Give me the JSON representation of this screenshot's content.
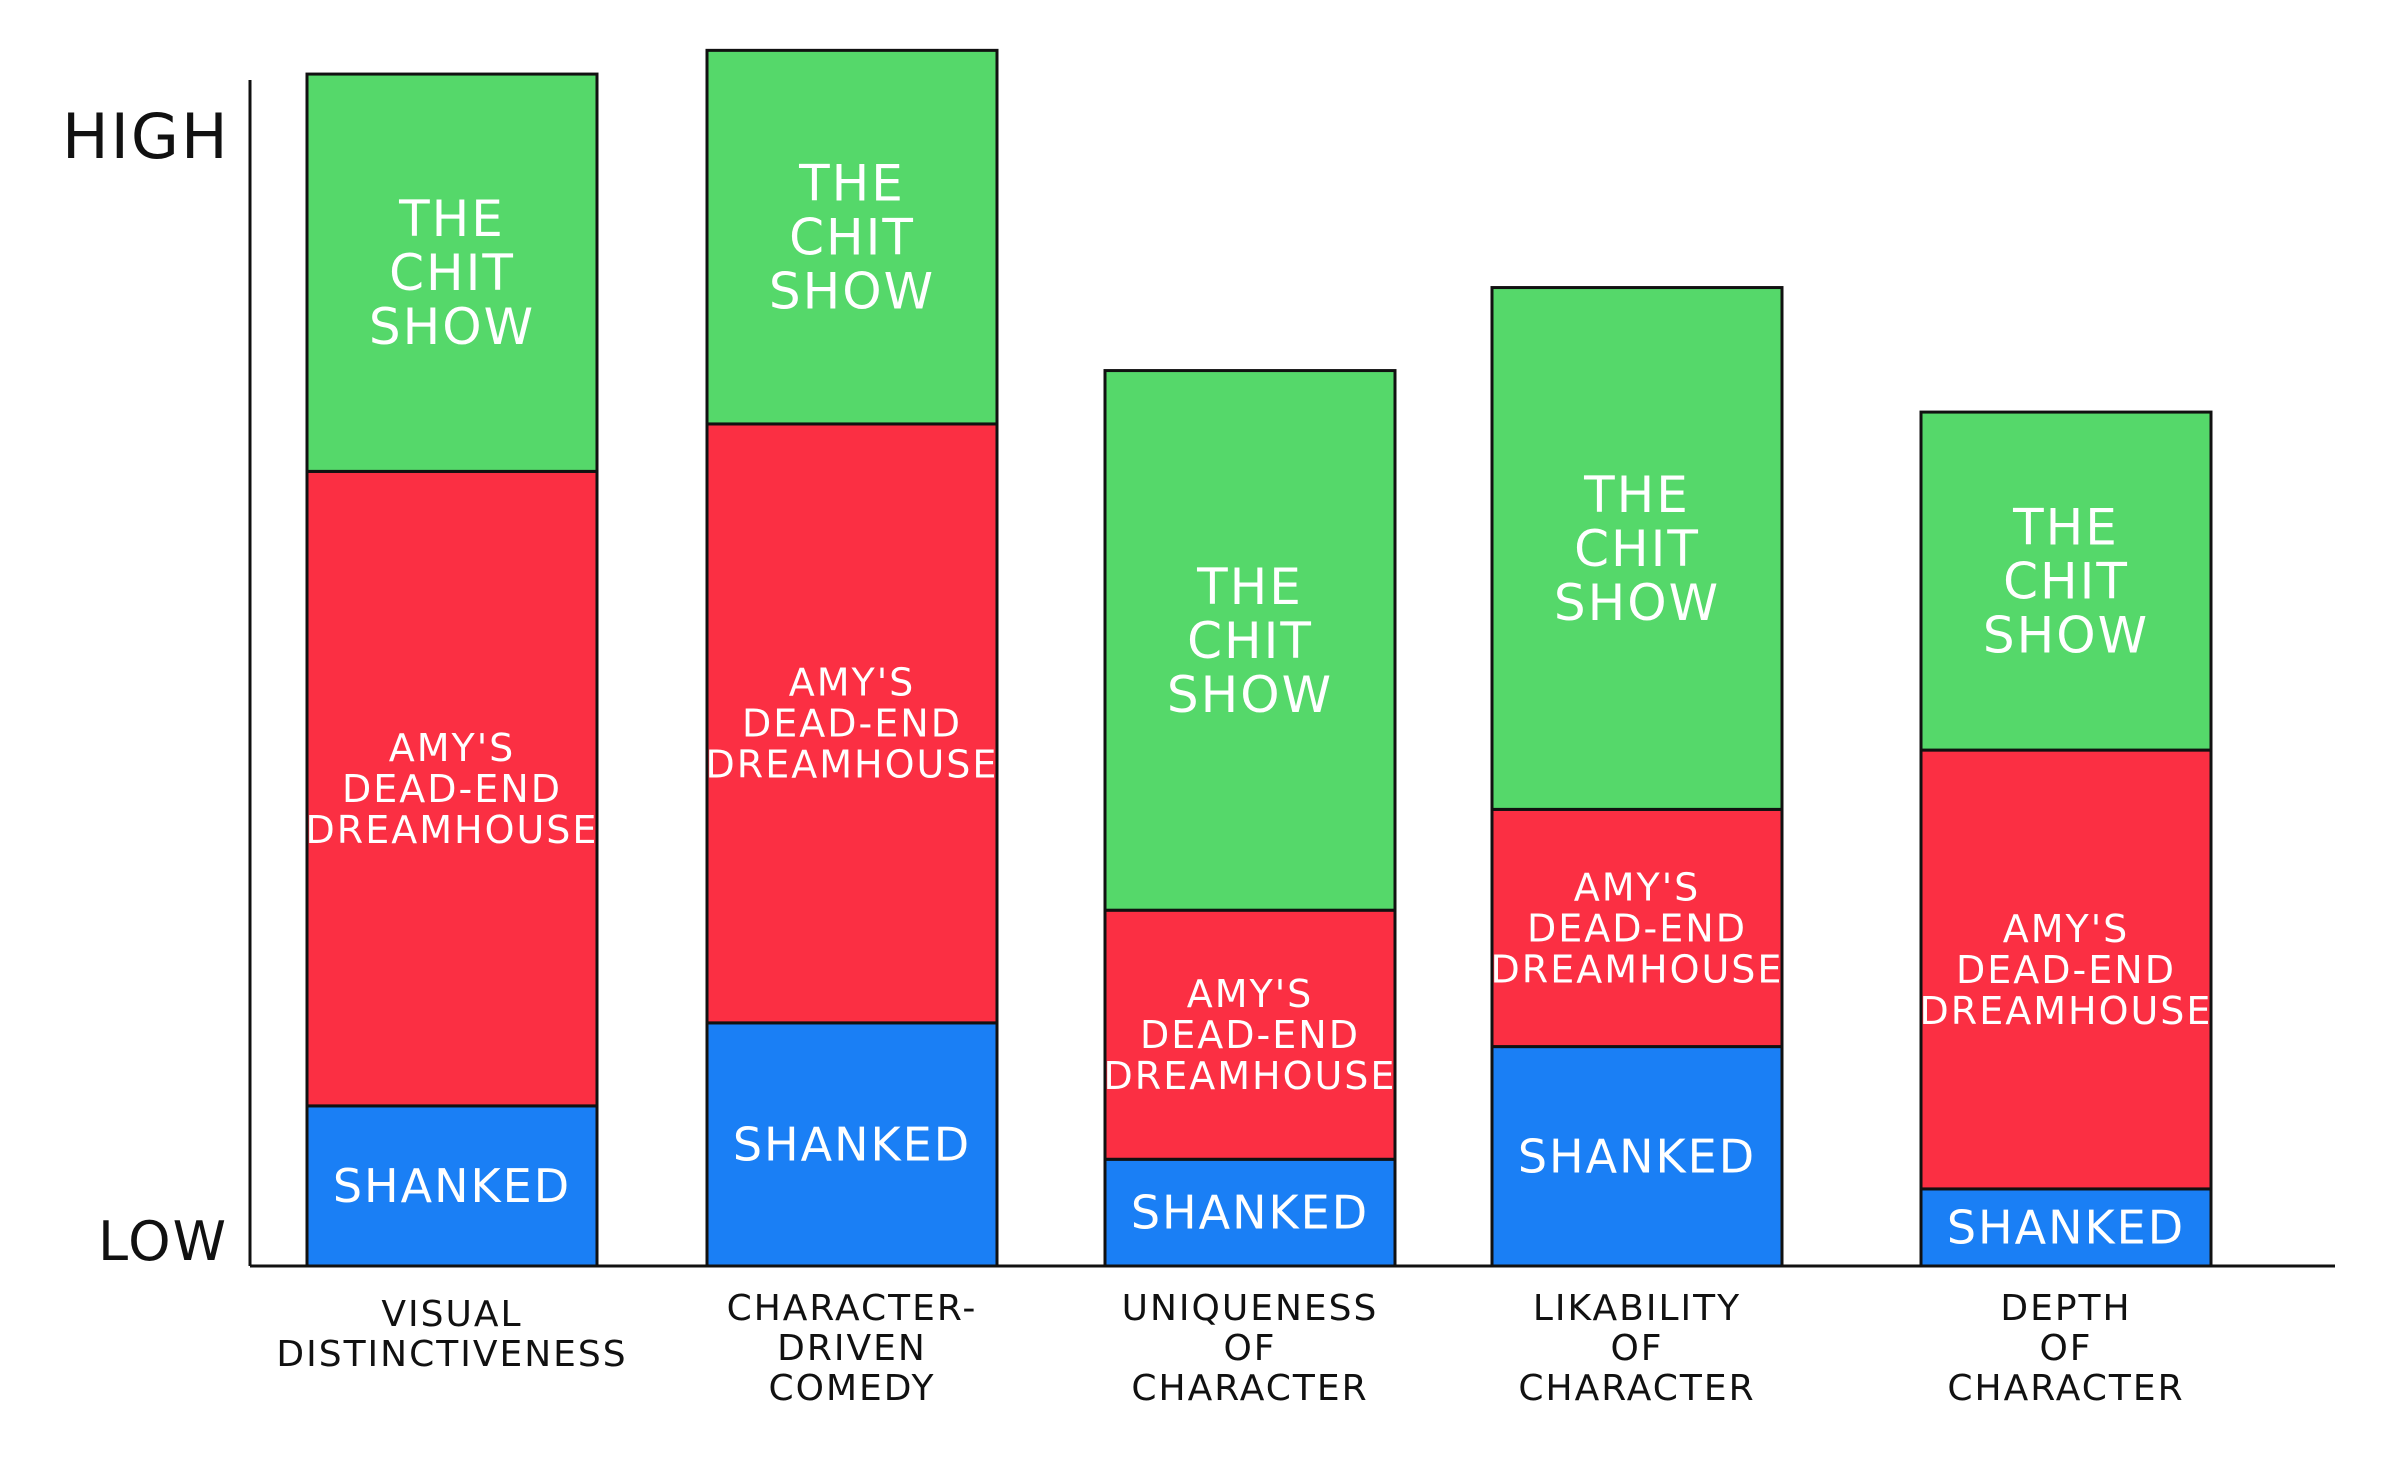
{
  "chart_data": {
    "type": "bar",
    "stacked": true,
    "title": "",
    "xlabel": "",
    "ylabel": "",
    "y_axis_top_label": "HIGH",
    "y_axis_bottom_label": "LOW",
    "ylim": [
      0,
      100
    ],
    "grid": false,
    "legend": "none",
    "categories": [
      [
        "VISUAL",
        "DISTINCTIVENESS"
      ],
      [
        "CHARACTER-",
        "DRIVEN",
        "COMEDY"
      ],
      [
        "UNIQUENESS",
        "OF",
        "CHARACTER"
      ],
      [
        "LIKABILITY",
        "OF",
        "CHARACTER"
      ],
      [
        "DEPTH",
        "OF",
        "CHARACTER"
      ]
    ],
    "series": [
      {
        "name": "SHANKED",
        "label_lines": [
          "SHANKED"
        ],
        "color": "#1a7ff5",
        "values": [
          13.5,
          20.5,
          9,
          18.5,
          6.5
        ]
      },
      {
        "name": "AMY'S DEAD-END DREAMHOUSE",
        "label_lines": [
          "AMY'S",
          "DEAD-END",
          "DREAMHOUSE"
        ],
        "color": "#fb2f43",
        "values": [
          53.5,
          50.5,
          21,
          20,
          37
        ]
      },
      {
        "name": "THE CHIT SHOW",
        "label_lines": [
          "THE",
          "CHIT",
          "SHOW"
        ],
        "color": "#55d86a",
        "values": [
          33.5,
          31.5,
          45.5,
          44,
          28.5
        ]
      }
    ]
  }
}
